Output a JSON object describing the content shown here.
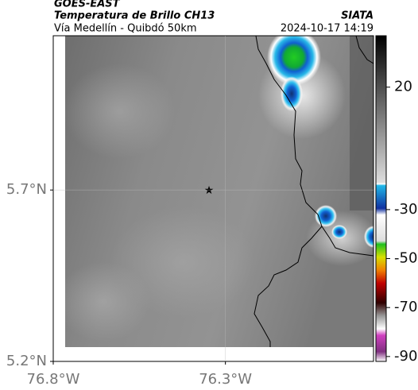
{
  "header": {
    "source": "GOES-EAST",
    "title": "Temperatura de Brillo CH13",
    "subtitle": "Vía Medellín - Quibdó 50km",
    "org": "SIATA",
    "timestamp": "2024-10-17 14:19"
  },
  "map": {
    "xlim": [
      -76.8,
      -75.87
    ],
    "ylim": [
      5.2,
      6.15
    ],
    "xticks": [
      {
        "value": -76.8,
        "label": "76.8°W"
      },
      {
        "value": -76.3,
        "label": "76.3°W"
      }
    ],
    "yticks": [
      {
        "value": 5.2,
        "label": "5.2°N"
      },
      {
        "value": 5.7,
        "label": "5.7°N"
      }
    ],
    "grid": true
  },
  "colorbar": {
    "lim": [
      -92,
      41
    ],
    "ticks": [
      20,
      -30,
      -50,
      -70,
      -90
    ]
  }
}
